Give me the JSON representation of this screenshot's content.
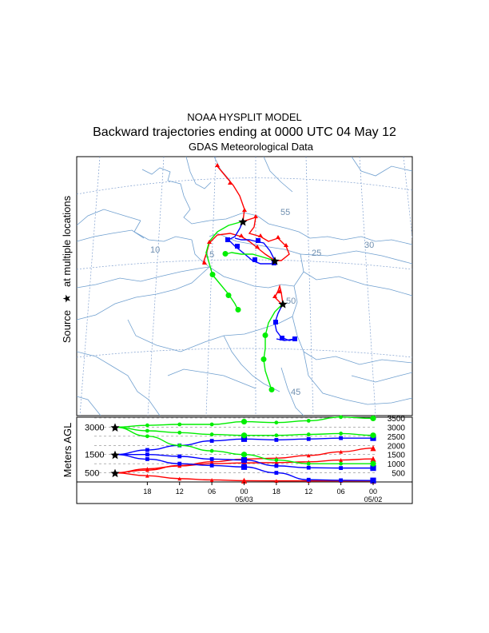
{
  "title": {
    "line1": "NOAA HYSPLIT MODEL",
    "line2": "Backward trajectories ending at 0000 UTC 04 May 12",
    "line3": "GDAS Meteorological Data"
  },
  "map": {
    "source_label": "Source",
    "source_marker": "★",
    "source_label_rest": "at multiple locations",
    "lat_labels": [
      "55",
      "50",
      "45"
    ],
    "lon_labels": [
      "10",
      "15",
      "25",
      "30"
    ]
  },
  "colors": {
    "red": "#ff0000",
    "blue": "#0000ff",
    "green": "#00ee00",
    "coast": "#6f9fcf",
    "grid": "#7f9fcf"
  },
  "chart_data": {
    "type": "line",
    "title": "Backward trajectories ending at 0000 UTC 04 May 12",
    "xlabel": "",
    "ylabel": "Meters AGL",
    "x_tick_labels": [
      "18",
      "12",
      "06",
      "00",
      "18",
      "12",
      "06",
      "00"
    ],
    "date_labels": [
      "05/03",
      "05/02"
    ],
    "x_hours_back": [
      0,
      6,
      12,
      18,
      24,
      30,
      36,
      42,
      48
    ],
    "ylim": [
      0,
      3700
    ],
    "left_axis_ticks": [
      "3000",
      "1500",
      "500"
    ],
    "right_axis_ticks": [
      "3500",
      "3000",
      "2500",
      "2000",
      "1500",
      "1000",
      "500"
    ],
    "series": [
      {
        "name": "traj1",
        "color": "red",
        "marker": "triangle",
        "values": [
          500,
          340,
          180,
          110,
          70,
          60,
          60,
          60,
          60
        ]
      },
      {
        "name": "traj2",
        "color": "red",
        "marker": "triangle",
        "values": [
          500,
          720,
          880,
          1000,
          1040,
          1060,
          1100,
          1200,
          1260
        ]
      },
      {
        "name": "traj3",
        "color": "red",
        "marker": "triangle",
        "values": [
          500,
          650,
          900,
          1100,
          1250,
          1300,
          1450,
          1650,
          1850
        ]
      },
      {
        "name": "traj4",
        "color": "blue",
        "marker": "square",
        "values": [
          1500,
          1500,
          1400,
          1250,
          1200,
          880,
          780,
          760,
          760
        ]
      },
      {
        "name": "traj5",
        "color": "blue",
        "marker": "square",
        "values": [
          1500,
          1250,
          1000,
          900,
          820,
          500,
          120,
          90,
          80
        ]
      },
      {
        "name": "traj6",
        "color": "blue",
        "marker": "square",
        "values": [
          1500,
          1750,
          2000,
          2250,
          2350,
          2300,
          2350,
          2400,
          2400
        ]
      },
      {
        "name": "traj7",
        "color": "green",
        "marker": "circle",
        "values": [
          3000,
          3100,
          3150,
          3150,
          3300,
          3250,
          3350,
          3550,
          3480
        ]
      },
      {
        "name": "traj8",
        "color": "green",
        "marker": "circle",
        "values": [
          3000,
          2800,
          2700,
          2600,
          2550,
          2550,
          2600,
          2650,
          2550
        ]
      },
      {
        "name": "traj9",
        "color": "green",
        "marker": "circle",
        "values": [
          3000,
          2500,
          2000,
          1700,
          1500,
          1200,
          1000,
          1000,
          1000
        ]
      }
    ]
  }
}
